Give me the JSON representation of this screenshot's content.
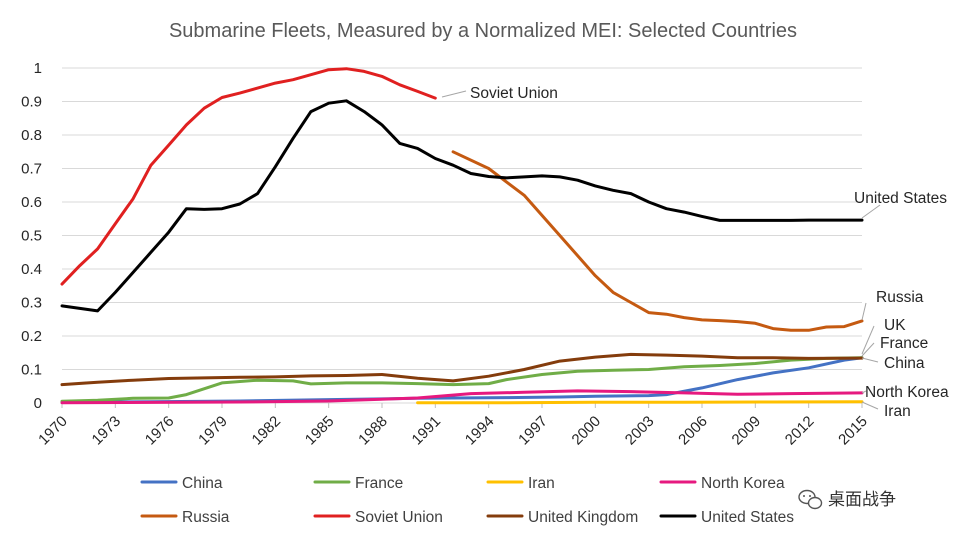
{
  "chart_data": {
    "type": "line",
    "title": "Submarine Fleets, Measured by a Normalized MEI: Selected Countries",
    "xlabel": "",
    "ylabel": "",
    "ylim": [
      0,
      1
    ],
    "y_ticks": [
      "0",
      "0.1",
      "0.2",
      "0.3",
      "0.4",
      "0.5",
      "0.6",
      "0.7",
      "0.8",
      "0.9",
      "1"
    ],
    "x_ticks": [
      "1970",
      "1973",
      "1976",
      "1979",
      "1982",
      "1985",
      "1988",
      "1991",
      "1994",
      "1997",
      "2000",
      "2003",
      "2006",
      "2009",
      "2012",
      "2015"
    ],
    "xlim": [
      1970,
      2015
    ],
    "series": [
      {
        "name": "China",
        "color": "#4472c4",
        "label": "China",
        "x": [
          1970,
          1975,
          1980,
          1985,
          1990,
          1995,
          1998,
          2000,
          2003,
          2004,
          2006,
          2008,
          2010,
          2012,
          2014,
          2015
        ],
        "values": [
          0.002,
          0.004,
          0.006,
          0.01,
          0.014,
          0.016,
          0.018,
          0.02,
          0.022,
          0.025,
          0.045,
          0.07,
          0.09,
          0.105,
          0.128,
          0.135
        ]
      },
      {
        "name": "France",
        "color": "#70ad47",
        "label": "France",
        "x": [
          1970,
          1972,
          1974,
          1976,
          1977,
          1979,
          1981,
          1983,
          1984,
          1986,
          1988,
          1990,
          1992,
          1994,
          1995,
          1997,
          1999,
          2001,
          2003,
          2005,
          2007,
          2009,
          2011,
          2013,
          2015
        ],
        "values": [
          0.005,
          0.008,
          0.014,
          0.015,
          0.025,
          0.06,
          0.068,
          0.066,
          0.057,
          0.06,
          0.06,
          0.058,
          0.055,
          0.058,
          0.07,
          0.085,
          0.095,
          0.098,
          0.1,
          0.108,
          0.112,
          0.118,
          0.128,
          0.133,
          0.135
        ]
      },
      {
        "name": "Iran",
        "color": "#ffc000",
        "label": "Iran",
        "x": [
          1990,
          1995,
          2000,
          2005,
          2010,
          2015
        ],
        "values": [
          0.001,
          0.001,
          0.002,
          0.002,
          0.003,
          0.004
        ]
      },
      {
        "name": "North Korea",
        "color": "#e6197f",
        "label": "North Korea",
        "x": [
          1970,
          1980,
          1985,
          1990,
          1993,
          1996,
          1999,
          2002,
          2005,
          2008,
          2011,
          2015
        ],
        "values": [
          0.001,
          0.003,
          0.006,
          0.015,
          0.028,
          0.032,
          0.036,
          0.034,
          0.03,
          0.026,
          0.028,
          0.03
        ]
      },
      {
        "name": "Russia",
        "color": "#c55a11",
        "label": "Russia",
        "x": [
          1992,
          1994,
          1996,
          1998,
          2000,
          2001,
          2002,
          2003,
          2004,
          2005,
          2006,
          2007,
          2008,
          2009,
          2010,
          2011,
          2012,
          2013,
          2014,
          2015
        ],
        "values": [
          0.75,
          0.7,
          0.62,
          0.5,
          0.38,
          0.33,
          0.3,
          0.27,
          0.265,
          0.255,
          0.248,
          0.246,
          0.243,
          0.238,
          0.222,
          0.217,
          0.217,
          0.227,
          0.228,
          0.245
        ]
      },
      {
        "name": "Soviet Union",
        "color": "#e02020",
        "label": "Soviet Union",
        "x": [
          1970,
          1971,
          1972,
          1973,
          1974,
          1975,
          1976,
          1977,
          1978,
          1979,
          1980,
          1981,
          1982,
          1983,
          1984,
          1985,
          1986,
          1987,
          1988,
          1989,
          1990,
          1991
        ],
        "values": [
          0.355,
          0.41,
          0.46,
          0.535,
          0.61,
          0.71,
          0.77,
          0.83,
          0.88,
          0.912,
          0.925,
          0.94,
          0.955,
          0.965,
          0.98,
          0.995,
          0.998,
          0.99,
          0.975,
          0.95,
          0.93,
          0.91
        ]
      },
      {
        "name": "United Kingdom",
        "color": "#843c0c",
        "label": "UK",
        "x": [
          1970,
          1972,
          1974,
          1976,
          1978,
          1980,
          1982,
          1984,
          1986,
          1988,
          1990,
          1992,
          1994,
          1996,
          1998,
          2000,
          2002,
          2004,
          2006,
          2008,
          2010,
          2012,
          2015
        ],
        "values": [
          0.055,
          0.062,
          0.068,
          0.073,
          0.075,
          0.077,
          0.078,
          0.081,
          0.082,
          0.085,
          0.074,
          0.066,
          0.08,
          0.1,
          0.125,
          0.137,
          0.145,
          0.143,
          0.14,
          0.135,
          0.135,
          0.133,
          0.134
        ]
      },
      {
        "name": "United States",
        "color": "#000000",
        "label": "United States",
        "x": [
          1970,
          1972,
          1973,
          1974,
          1975,
          1976,
          1977,
          1978,
          1979,
          1980,
          1981,
          1982,
          1983,
          1984,
          1985,
          1986,
          1987,
          1988,
          1989,
          1990,
          1991,
          1992,
          1993,
          1994,
          1995,
          1996,
          1997,
          1998,
          1999,
          2000,
          2001,
          2002,
          2003,
          2004,
          2005,
          2006,
          2007,
          2008,
          2009,
          2010,
          2011,
          2012,
          2013,
          2014,
          2015
        ],
        "values": [
          0.29,
          0.275,
          0.33,
          0.39,
          0.45,
          0.51,
          0.58,
          0.578,
          0.58,
          0.594,
          0.625,
          0.705,
          0.79,
          0.87,
          0.895,
          0.902,
          0.87,
          0.83,
          0.775,
          0.76,
          0.73,
          0.71,
          0.685,
          0.676,
          0.672,
          0.675,
          0.678,
          0.675,
          0.665,
          0.648,
          0.635,
          0.625,
          0.6,
          0.58,
          0.57,
          0.557,
          0.545,
          0.545,
          0.545,
          0.545,
          0.545,
          0.546,
          0.546,
          0.546,
          0.546
        ]
      }
    ],
    "legend": {
      "placement": "bottom",
      "items": [
        "China",
        "France",
        "Iran",
        "North Korea",
        "Russia",
        "Soviet Union",
        "United Kingdom",
        "United States"
      ]
    }
  },
  "annotations": {
    "soviet_union": "Soviet Union",
    "united_states": "United States",
    "russia": "Russia",
    "uk": "UK",
    "france": "France",
    "china": "China",
    "north_korea": "North Korea",
    "iran": "Iran"
  },
  "watermark": {
    "icon": "wechat-icon",
    "text": "桌面战争"
  }
}
